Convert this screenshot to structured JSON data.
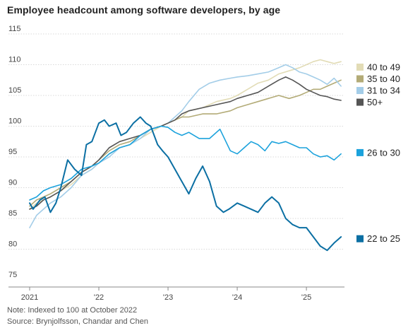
{
  "title": "Employee headcount among software developers, by age",
  "note": "Note: Indexed to 100 at October 2022",
  "source": "Source: Brynjolfsson, Chandar and Chen",
  "chart_data": {
    "type": "line",
    "title": "Employee headcount among software developers, by age",
    "xlabel": "",
    "ylabel": "",
    "ylim": [
      75,
      115
    ],
    "yticks": [
      75,
      80,
      85,
      90,
      95,
      100,
      105,
      110,
      115
    ],
    "xticks": [
      {
        "value": 2021.0,
        "label": "2021"
      },
      {
        "value": 2022.0,
        "label": "'22"
      },
      {
        "value": 2023.0,
        "label": "'23"
      },
      {
        "value": 2024.0,
        "label": "'24"
      },
      {
        "value": 2025.0,
        "label": "'25"
      }
    ],
    "xlim": [
      2021.0,
      2025.55
    ],
    "grid": "horizontal",
    "legend": "right",
    "series": [
      {
        "name": "40 to 49",
        "color": "#e2dcb6",
        "width": 1.6,
        "x": [
          2021.0,
          2021.1,
          2021.2,
          2021.3,
          2021.45,
          2021.6,
          2021.75,
          2021.9,
          2022.0,
          2022.15,
          2022.3,
          2022.45,
          2022.6,
          2022.75,
          2022.9,
          2023.0,
          2023.1,
          2023.2,
          2023.3,
          2023.5,
          2023.7,
          2023.9,
          2024.0,
          2024.15,
          2024.3,
          2024.45,
          2024.6,
          2024.75,
          2024.9,
          2025.0,
          2025.1,
          2025.2,
          2025.3,
          2025.4,
          2025.5
        ],
        "y": [
          86.5,
          87.5,
          88.0,
          88.5,
          89.5,
          90.5,
          92.0,
          93.0,
          94.0,
          95.5,
          96.5,
          97.0,
          98.0,
          99.0,
          100.0,
          100.5,
          101.0,
          101.5,
          102.5,
          103.0,
          104.0,
          104.5,
          105.0,
          106.0,
          107.0,
          107.5,
          108.5,
          109.0,
          109.5,
          110.0,
          110.5,
          110.8,
          110.5,
          110.2,
          110.5
        ]
      },
      {
        "name": "35 to 40",
        "color": "#b3ab77",
        "width": 1.6,
        "x": [
          2021.0,
          2021.1,
          2021.2,
          2021.3,
          2021.45,
          2021.6,
          2021.75,
          2021.9,
          2022.0,
          2022.15,
          2022.3,
          2022.45,
          2022.6,
          2022.75,
          2022.9,
          2023.0,
          2023.1,
          2023.2,
          2023.3,
          2023.5,
          2023.7,
          2023.9,
          2024.0,
          2024.15,
          2024.3,
          2024.45,
          2024.6,
          2024.75,
          2024.9,
          2025.0,
          2025.1,
          2025.2,
          2025.3,
          2025.4,
          2025.5
        ],
        "y": [
          87.0,
          88.0,
          88.5,
          89.0,
          90.0,
          91.0,
          92.5,
          93.5,
          94.5,
          96.0,
          97.0,
          97.5,
          98.5,
          99.5,
          100.0,
          100.5,
          101.0,
          101.5,
          101.5,
          102.0,
          102.0,
          102.5,
          103.0,
          103.5,
          104.0,
          104.5,
          105.0,
          104.5,
          105.0,
          105.5,
          106.0,
          106.0,
          106.5,
          107.0,
          107.5
        ]
      },
      {
        "name": "31 to 34",
        "color": "#a3cde8",
        "width": 1.6,
        "x": [
          2021.0,
          2021.1,
          2021.2,
          2021.3,
          2021.45,
          2021.6,
          2021.75,
          2021.9,
          2022.0,
          2022.15,
          2022.3,
          2022.45,
          2022.6,
          2022.75,
          2022.9,
          2023.0,
          2023.1,
          2023.2,
          2023.3,
          2023.45,
          2023.6,
          2023.75,
          2023.9,
          2024.0,
          2024.15,
          2024.3,
          2024.45,
          2024.6,
          2024.7,
          2024.8,
          2024.9,
          2025.0,
          2025.1,
          2025.2,
          2025.3,
          2025.4,
          2025.5
        ],
        "y": [
          83.5,
          85.5,
          86.5,
          87.5,
          88.5,
          90.0,
          92.0,
          93.0,
          94.0,
          95.0,
          96.5,
          97.0,
          98.0,
          99.5,
          100.0,
          100.5,
          101.5,
          102.5,
          104.0,
          106.0,
          107.0,
          107.5,
          107.8,
          108.0,
          108.2,
          108.5,
          108.8,
          109.5,
          110.0,
          109.5,
          108.8,
          108.5,
          108.0,
          107.5,
          106.8,
          107.8,
          106.5
        ]
      },
      {
        "name": "50+",
        "color": "#555555",
        "width": 1.6,
        "x": [
          2021.0,
          2021.1,
          2021.2,
          2021.3,
          2021.45,
          2021.6,
          2021.75,
          2021.9,
          2022.0,
          2022.15,
          2022.3,
          2022.45,
          2022.6,
          2022.75,
          2022.9,
          2023.0,
          2023.1,
          2023.2,
          2023.3,
          2023.5,
          2023.7,
          2023.9,
          2024.0,
          2024.15,
          2024.3,
          2024.45,
          2024.6,
          2024.7,
          2024.8,
          2024.9,
          2025.0,
          2025.1,
          2025.2,
          2025.3,
          2025.4,
          2025.5
        ],
        "y": [
          86.5,
          87.0,
          88.0,
          88.5,
          89.5,
          91.0,
          92.5,
          93.5,
          94.5,
          96.5,
          97.5,
          98.0,
          98.5,
          99.5,
          100.0,
          100.5,
          101.0,
          102.0,
          102.5,
          103.0,
          103.5,
          104.0,
          104.5,
          105.0,
          105.5,
          106.5,
          107.5,
          108.0,
          107.5,
          106.8,
          106.0,
          105.5,
          105.0,
          104.8,
          104.4,
          104.2
        ]
      },
      {
        "name": "26 to 30",
        "color": "#1ba2dc",
        "width": 1.6,
        "x": [
          2021.0,
          2021.1,
          2021.2,
          2021.3,
          2021.45,
          2021.6,
          2021.75,
          2021.9,
          2022.0,
          2022.15,
          2022.3,
          2022.45,
          2022.6,
          2022.75,
          2022.9,
          2023.0,
          2023.1,
          2023.2,
          2023.3,
          2023.45,
          2023.6,
          2023.75,
          2023.9,
          2024.0,
          2024.1,
          2024.2,
          2024.3,
          2024.4,
          2024.5,
          2024.6,
          2024.7,
          2024.8,
          2024.9,
          2025.0,
          2025.1,
          2025.2,
          2025.3,
          2025.4,
          2025.5
        ],
        "y": [
          88.0,
          88.5,
          89.5,
          90.0,
          90.5,
          91.5,
          93.0,
          93.5,
          94.0,
          95.5,
          96.5,
          97.0,
          98.5,
          99.5,
          100.0,
          99.8,
          99.0,
          98.5,
          99.0,
          98.0,
          98.0,
          99.5,
          96.0,
          95.5,
          96.5,
          97.5,
          97.0,
          96.0,
          97.5,
          97.2,
          97.5,
          97.0,
          96.5,
          96.5,
          95.5,
          95.0,
          95.2,
          94.5,
          95.5
        ]
      },
      {
        "name": "22 to 25",
        "color": "#0b6fa3",
        "width": 2.0,
        "x": [
          2021.0,
          2021.05,
          2021.15,
          2021.22,
          2021.3,
          2021.38,
          2021.45,
          2021.55,
          2021.65,
          2021.75,
          2021.82,
          2021.9,
          2022.0,
          2022.08,
          2022.15,
          2022.25,
          2022.32,
          2022.4,
          2022.5,
          2022.6,
          2022.68,
          2022.75,
          2022.85,
          2022.92,
          2023.0,
          2023.1,
          2023.2,
          2023.3,
          2023.4,
          2023.5,
          2023.6,
          2023.7,
          2023.8,
          2023.88,
          2024.0,
          2024.1,
          2024.2,
          2024.3,
          2024.4,
          2024.5,
          2024.6,
          2024.7,
          2024.8,
          2024.9,
          2025.0,
          2025.1,
          2025.2,
          2025.3,
          2025.4,
          2025.5
        ],
        "y": [
          87.5,
          86.5,
          88.0,
          88.5,
          86.0,
          87.5,
          90.0,
          94.5,
          93.0,
          92.0,
          97.0,
          97.5,
          100.5,
          101.0,
          100.0,
          100.5,
          98.5,
          99.0,
          100.5,
          101.5,
          100.5,
          100.0,
          97.0,
          96.0,
          95.0,
          93.0,
          91.0,
          89.0,
          91.5,
          93.5,
          91.0,
          87.0,
          86.0,
          86.5,
          87.5,
          87.0,
          86.5,
          86.0,
          87.5,
          88.5,
          87.5,
          85.0,
          84.0,
          83.5,
          83.5,
          82.0,
          80.5,
          79.8,
          81.0,
          82.0
        ]
      }
    ],
    "legend_entries": [
      {
        "label": "40 to 49",
        "color": "#e2dcb6",
        "y": 109.6
      },
      {
        "label": "35 to 40",
        "color": "#b3ab77",
        "y": 107.7
      },
      {
        "label": "31 to 34",
        "color": "#a3cde8",
        "y": 105.8
      },
      {
        "label": "50+",
        "color": "#555555",
        "y": 103.9
      },
      {
        "label": "26 to 30",
        "color": "#1ba2dc",
        "y": 95.7
      },
      {
        "label": "22 to 25",
        "color": "#0b6fa3",
        "y": 81.7
      }
    ]
  }
}
